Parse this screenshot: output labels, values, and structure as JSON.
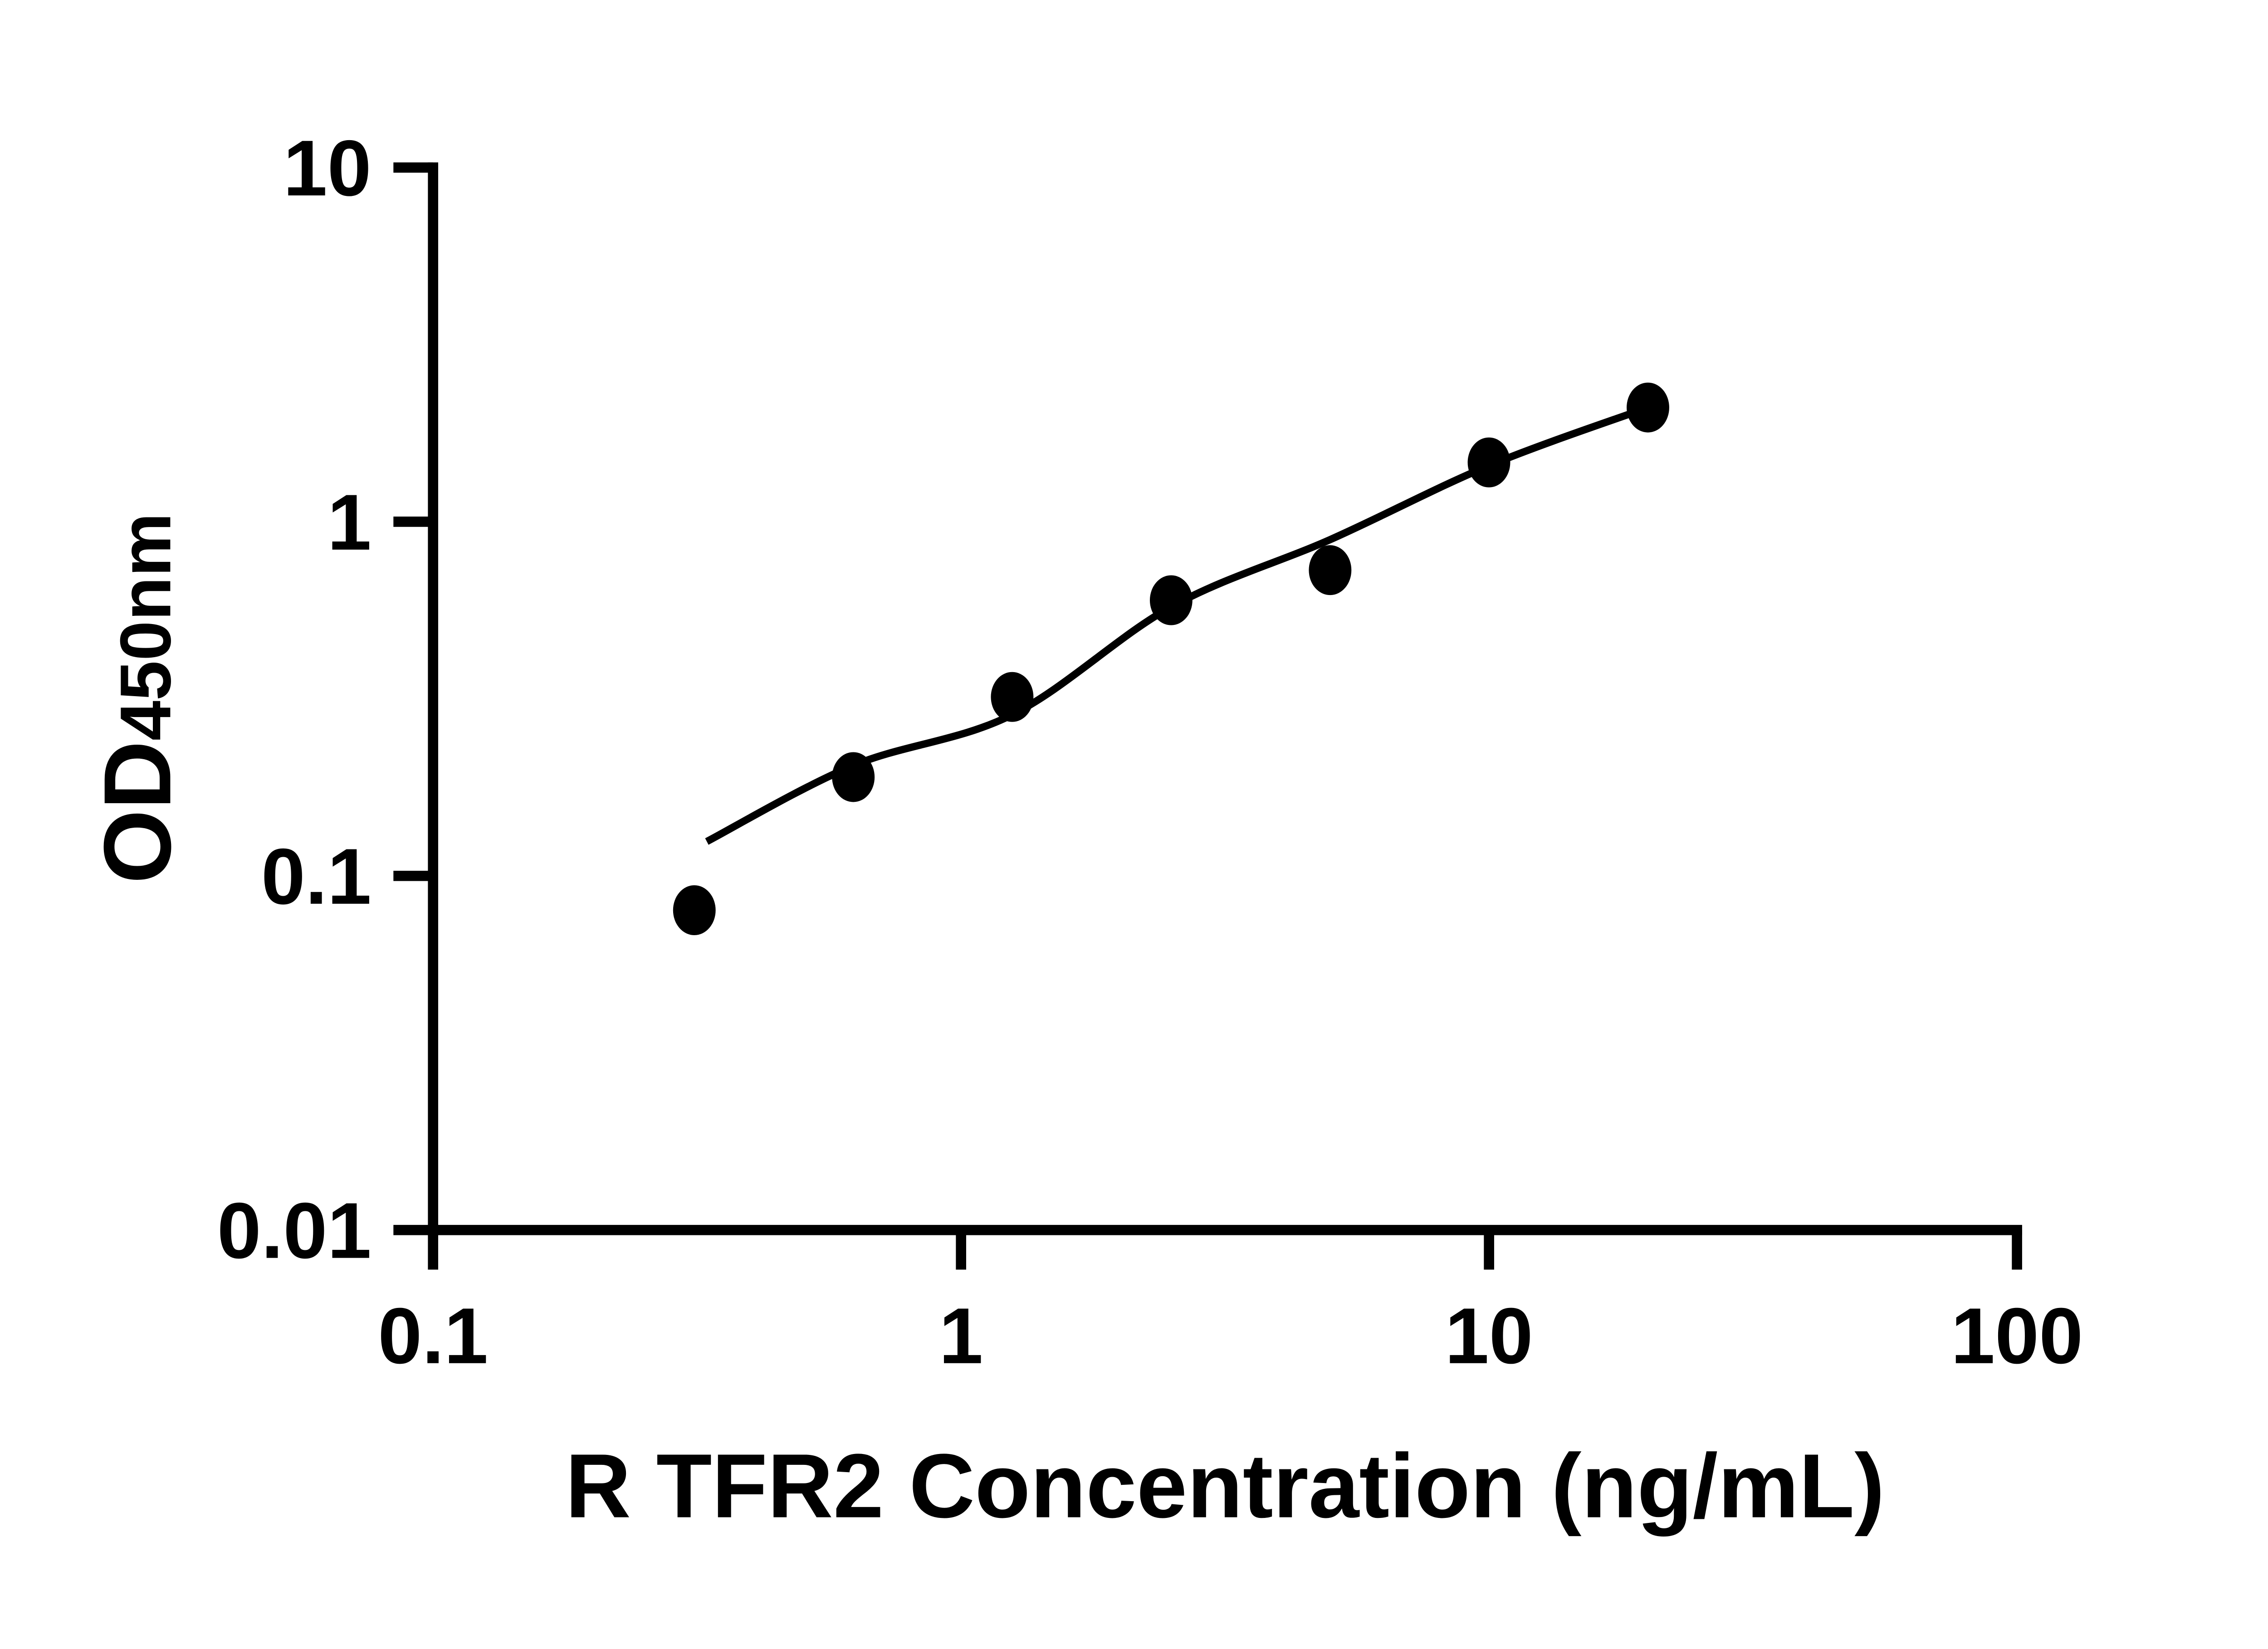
{
  "figure": {
    "background": "#ffffff",
    "ink_color": "#000000"
  },
  "chart_data": {
    "type": "scatter",
    "title": "",
    "xlabel": "R TFR2 Concentration (ng/mL)",
    "ylabel_main": "OD",
    "ylabel_subscript": "450nm",
    "x_scale": "log",
    "y_scale": "log",
    "xlim": [
      0.1,
      100
    ],
    "ylim": [
      0.01,
      10
    ],
    "grid": "off",
    "legend": "none",
    "x_ticks": [
      {
        "value": 0.1,
        "label": "0.1"
      },
      {
        "value": 1,
        "label": "1"
      },
      {
        "value": 10,
        "label": "10"
      },
      {
        "value": 100,
        "label": "100"
      }
    ],
    "y_ticks": [
      {
        "value": 0.01,
        "label": "0.01"
      },
      {
        "value": 0.1,
        "label": "0.1"
      },
      {
        "value": 1,
        "label": "1"
      },
      {
        "value": 10,
        "label": "10"
      }
    ],
    "series": [
      {
        "name": "standard-curve-points",
        "marker": "ellipse",
        "color": "#000000",
        "points": [
          {
            "x": 0.3125,
            "y": 0.08
          },
          {
            "x": 0.625,
            "y": 0.19
          },
          {
            "x": 1.25,
            "y": 0.32
          },
          {
            "x": 2.5,
            "y": 0.6
          },
          {
            "x": 5,
            "y": 0.73
          },
          {
            "x": 10,
            "y": 1.47
          },
          {
            "x": 20,
            "y": 2.1
          }
        ]
      }
    ],
    "trend_line": {
      "name": "fitted-curve",
      "color": "#000000",
      "points": [
        {
          "x": 0.33,
          "y": 0.125
        },
        {
          "x": 0.625,
          "y": 0.205
        },
        {
          "x": 1.25,
          "y": 0.285
        },
        {
          "x": 2.5,
          "y": 0.575
        },
        {
          "x": 5,
          "y": 0.89
        },
        {
          "x": 10,
          "y": 1.44
        },
        {
          "x": 20,
          "y": 2.1
        }
      ]
    }
  }
}
